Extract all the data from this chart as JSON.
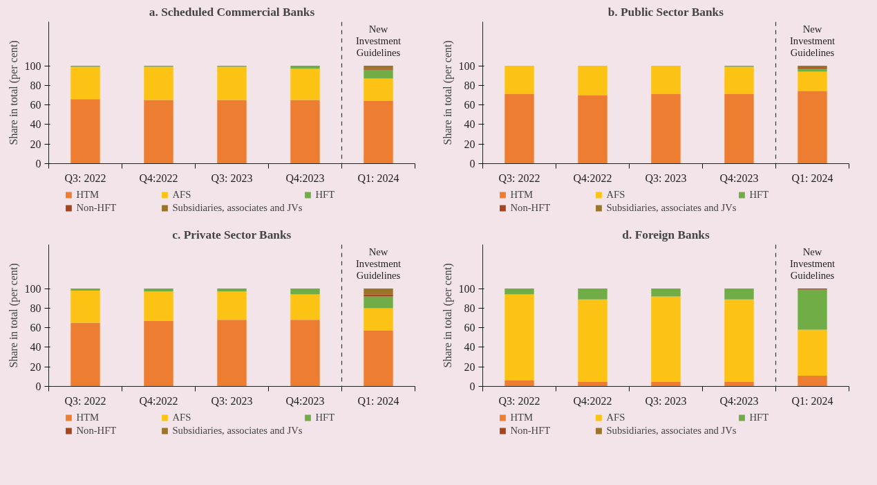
{
  "chart_data": [
    {
      "type": "bar",
      "title": "a. Scheduled Commercial Banks",
      "ylabel": "Share in total (per cent)",
      "categories": [
        "Q3: 2022",
        "Q4:2022",
        "Q3: 2023",
        "Q4:2023",
        "Q1: 2024"
      ],
      "stacked": true,
      "ylim": [
        0,
        145
      ],
      "yticks": [
        0,
        20,
        40,
        60,
        80,
        100
      ],
      "legend": "bottom",
      "annotations": [
        "New Investment Guidelines"
      ],
      "series": [
        {
          "name": "HTM",
          "color": "#ed7d31",
          "values": [
            66,
            65,
            65,
            65,
            64
          ]
        },
        {
          "name": "AFS",
          "color": "#fcc214",
          "values": [
            33,
            34,
            34,
            32,
            23
          ]
        },
        {
          "name": "HFT",
          "color": "#70ad47",
          "values": [
            1,
            1,
            1,
            3,
            9
          ]
        },
        {
          "name": "Non-HFT",
          "color": "#a5461f",
          "values": [
            0,
            0,
            0,
            0,
            1
          ]
        },
        {
          "name": "Subsidiaries, associates and JVs",
          "color": "#9b742a",
          "values": [
            0,
            0,
            0,
            0,
            3
          ]
        }
      ]
    },
    {
      "type": "bar",
      "title": "b. Public Sector Banks",
      "ylabel": "Share in total (per cent)",
      "categories": [
        "Q3: 2022",
        "Q4:2022",
        "Q3: 2023",
        "Q4:2023",
        "Q1: 2024"
      ],
      "stacked": true,
      "ylim": [
        0,
        145
      ],
      "yticks": [
        0,
        20,
        40,
        60,
        80,
        100
      ],
      "legend": "bottom",
      "annotations": [
        "New Investment Guidelines"
      ],
      "series": [
        {
          "name": "HTM",
          "color": "#ed7d31",
          "values": [
            71,
            70,
            71,
            71,
            74
          ]
        },
        {
          "name": "AFS",
          "color": "#fcc214",
          "values": [
            29,
            30,
            29,
            28,
            20
          ]
        },
        {
          "name": "HFT",
          "color": "#70ad47",
          "values": [
            0,
            0,
            0,
            1,
            3
          ]
        },
        {
          "name": "Non-HFT",
          "color": "#a5461f",
          "values": [
            0,
            0,
            0,
            0,
            1
          ]
        },
        {
          "name": "Subsidiaries, associates and JVs",
          "color": "#9b742a",
          "values": [
            0,
            0,
            0,
            0,
            2
          ]
        }
      ]
    },
    {
      "type": "bar",
      "title": "c. Private Sector Banks",
      "ylabel": "Share in total (per cent)",
      "categories": [
        "Q3: 2022",
        "Q4:2022",
        "Q3: 2023",
        "Q4:2023",
        "Q1: 2024"
      ],
      "stacked": true,
      "ylim": [
        0,
        145
      ],
      "yticks": [
        0,
        20,
        40,
        60,
        80,
        100
      ],
      "legend": "bottom",
      "annotations": [
        "New Investment Guidelines"
      ],
      "series": [
        {
          "name": "HTM",
          "color": "#ed7d31",
          "values": [
            65,
            67,
            68,
            68,
            57
          ]
        },
        {
          "name": "AFS",
          "color": "#fcc214",
          "values": [
            33,
            30,
            29,
            26,
            23
          ]
        },
        {
          "name": "HFT",
          "color": "#70ad47",
          "values": [
            2,
            3,
            3,
            6,
            12
          ]
        },
        {
          "name": "Non-HFT",
          "color": "#a5461f",
          "values": [
            0,
            0,
            0,
            0,
            2
          ]
        },
        {
          "name": "Subsidiaries, associates and JVs",
          "color": "#9b742a",
          "values": [
            0,
            0,
            0,
            0,
            6
          ]
        }
      ]
    },
    {
      "type": "bar",
      "title": "d. Foreign Banks",
      "ylabel": "Share in total (per cent)",
      "categories": [
        "Q3: 2022",
        "Q4:2022",
        "Q3: 2023",
        "Q4:2023",
        "Q1: 2024"
      ],
      "stacked": true,
      "ylim": [
        0,
        145
      ],
      "yticks": [
        0,
        20,
        40,
        60,
        80,
        100
      ],
      "legend": "bottom",
      "annotations": [
        "New Investment Guidelines"
      ],
      "series": [
        {
          "name": "HTM",
          "color": "#ed7d31",
          "values": [
            6,
            5,
            5,
            5,
            11
          ]
        },
        {
          "name": "AFS",
          "color": "#fcc214",
          "values": [
            88,
            84,
            87,
            84,
            47
          ]
        },
        {
          "name": "HFT",
          "color": "#70ad47",
          "values": [
            6,
            11,
            8,
            11,
            41
          ]
        },
        {
          "name": "Non-HFT",
          "color": "#a5461f",
          "values": [
            0,
            0,
            0,
            0,
            1
          ]
        },
        {
          "name": "Subsidiaries, associates and JVs",
          "color": "#9b742a",
          "values": [
            0,
            0,
            0,
            0,
            0
          ]
        }
      ]
    }
  ]
}
